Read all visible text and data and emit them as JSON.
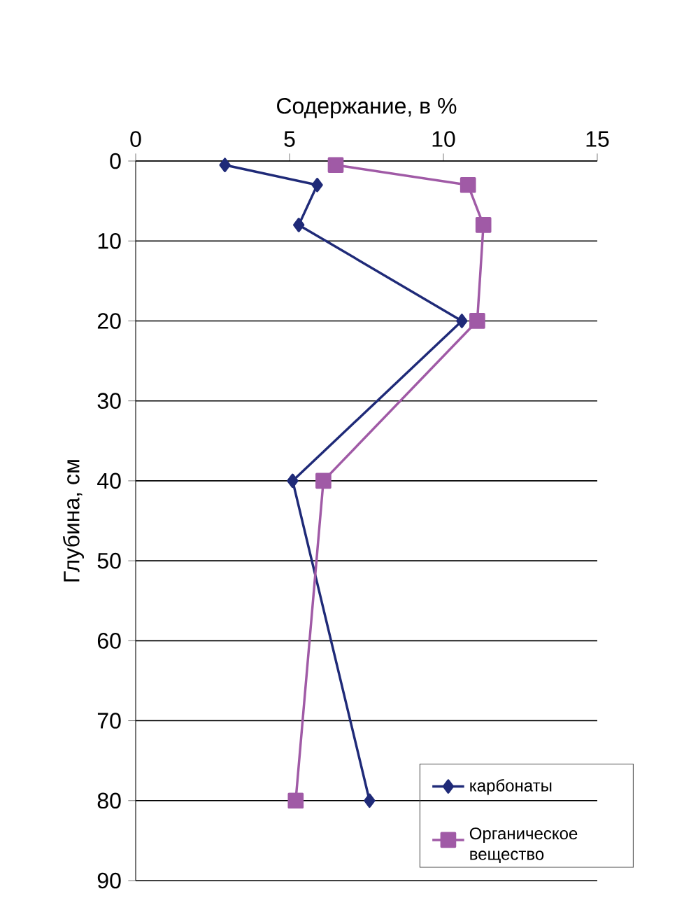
{
  "chart_data": {
    "type": "line",
    "xlabel": "Содержание, в %",
    "ylabel": "Глубина, см",
    "xlim": [
      0,
      15
    ],
    "xticks": [
      0,
      5,
      10,
      15
    ],
    "ylim": [
      90,
      0
    ],
    "yticks": [
      0,
      10,
      20,
      30,
      40,
      50,
      60,
      70,
      80,
      90
    ],
    "grid": "y",
    "legend": "bottom right",
    "series": [
      {
        "name": "карбонаты",
        "color": "#1f2a78",
        "marker": "diamond",
        "x": [
          2.9,
          5.9,
          5.3,
          10.6,
          5.1,
          7.6
        ],
        "values": [
          0.5,
          3,
          8,
          20,
          40,
          80
        ]
      },
      {
        "name": "Органическое вещество",
        "color": "#a05aa6",
        "marker": "square",
        "x": [
          6.5,
          10.8,
          11.3,
          11.1,
          6.1,
          5.2
        ],
        "values": [
          0.5,
          3,
          8,
          20,
          40,
          80
        ]
      }
    ]
  }
}
